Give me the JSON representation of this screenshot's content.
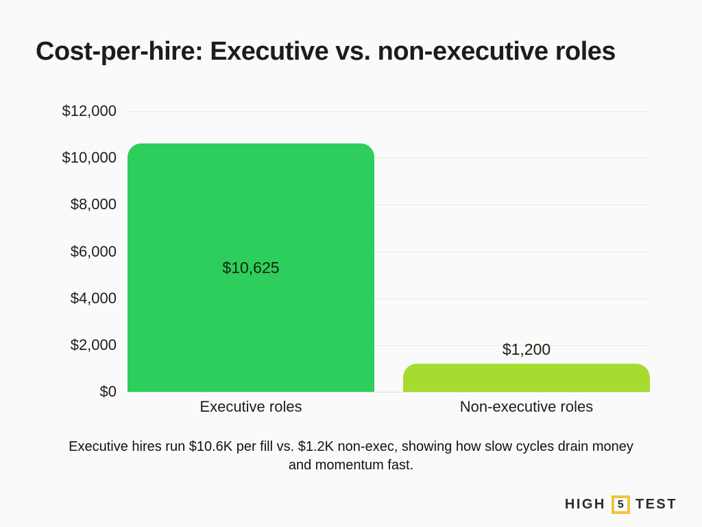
{
  "title": "Cost-per-hire: Executive vs. non-executive roles",
  "chart_data": {
    "type": "bar",
    "title": "Cost-per-hire: Executive vs. non-executive roles",
    "categories": [
      "Executive roles",
      "Non-executive roles"
    ],
    "values": [
      10625,
      1200
    ],
    "value_labels": [
      "$10,625",
      "$1,200"
    ],
    "value_label_positions": [
      "inside",
      "above"
    ],
    "bar_colors": [
      "#2DCE5C",
      "#A6DC30"
    ],
    "xlabel": "",
    "ylabel": "",
    "ylim": [
      0,
      12000
    ],
    "ytick_step": 2000,
    "ytick_labels": [
      "$0",
      "$2,000",
      "$4,000",
      "$6,000",
      "$8,000",
      "$10,000",
      "$12,000"
    ],
    "grid": true,
    "legend": false
  },
  "caption": "Executive hires run $10.6K per fill vs. $1.2K non-exec, showing how slow cycles drain money and momentum fast.",
  "logo": {
    "part1": "HIGH",
    "part2": "5",
    "part3": "TEST",
    "accent_color": "#F0C43C"
  },
  "colors": {
    "background": "#FAFAFA",
    "text": "#1C1C1C",
    "gridline": "#E9E9E9",
    "bar_executive": "#2DCE5C",
    "bar_non_executive": "#A6DC30",
    "logo_yellow": "#F0C43C"
  }
}
